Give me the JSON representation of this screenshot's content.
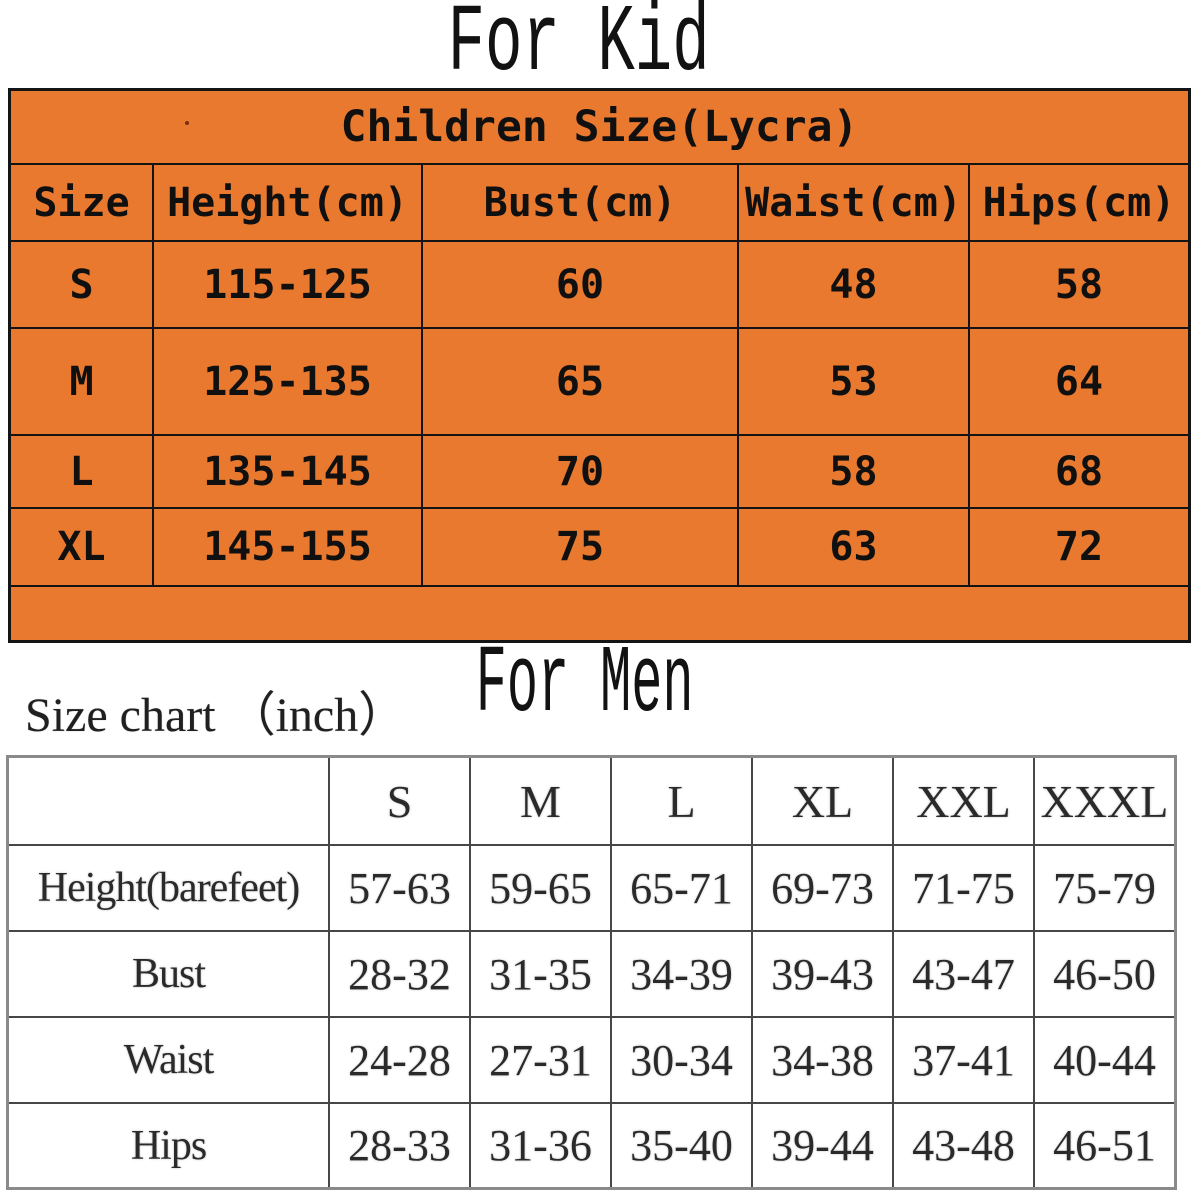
{
  "headings": {
    "kid_section": "For Kid",
    "men_section": "For Men",
    "men_subtitle": "Size chart （inch）"
  },
  "colors": {
    "kid_table_bg": "#e8792e",
    "kid_table_border": "#141414",
    "men_table_border": "#8a8a8a"
  },
  "chart_data": [
    {
      "type": "table",
      "section_heading": "For Kid",
      "title": "Children Size(Lycra)",
      "columns": [
        "Size",
        "Height(cm)",
        "Bust(cm)",
        "Waist(cm)",
        "Hips(cm)"
      ],
      "rows": [
        {
          "label": "S",
          "values": [
            "115-125",
            "60",
            "48",
            "58"
          ]
        },
        {
          "label": "M",
          "values": [
            "125-135",
            "65",
            "53",
            "64"
          ]
        },
        {
          "label": "L",
          "values": [
            "135-145",
            "70",
            "58",
            "68"
          ]
        },
        {
          "label": "XL",
          "values": [
            "145-155",
            "75",
            "63",
            "72"
          ]
        }
      ]
    },
    {
      "type": "table",
      "section_heading": "For Men",
      "subtitle": "Size chart （inch）",
      "columns": [
        "S",
        "M",
        "L",
        "XL",
        "XXL",
        "XXXL"
      ],
      "rows": [
        {
          "label": "Height(barefeet)",
          "values": [
            "57-63",
            "59-65",
            "65-71",
            "69-73",
            "71-75",
            "75-79"
          ]
        },
        {
          "label": "Bust",
          "values": [
            "28-32",
            "31-35",
            "34-39",
            "39-43",
            "43-47",
            "46-50"
          ]
        },
        {
          "label": "Waist",
          "values": [
            "24-28",
            "27-31",
            "30-34",
            "34-38",
            "37-41",
            "40-44"
          ]
        },
        {
          "label": "Hips",
          "values": [
            "28-33",
            "31-36",
            "35-40",
            "39-44",
            "43-48",
            "46-51"
          ]
        }
      ]
    }
  ]
}
